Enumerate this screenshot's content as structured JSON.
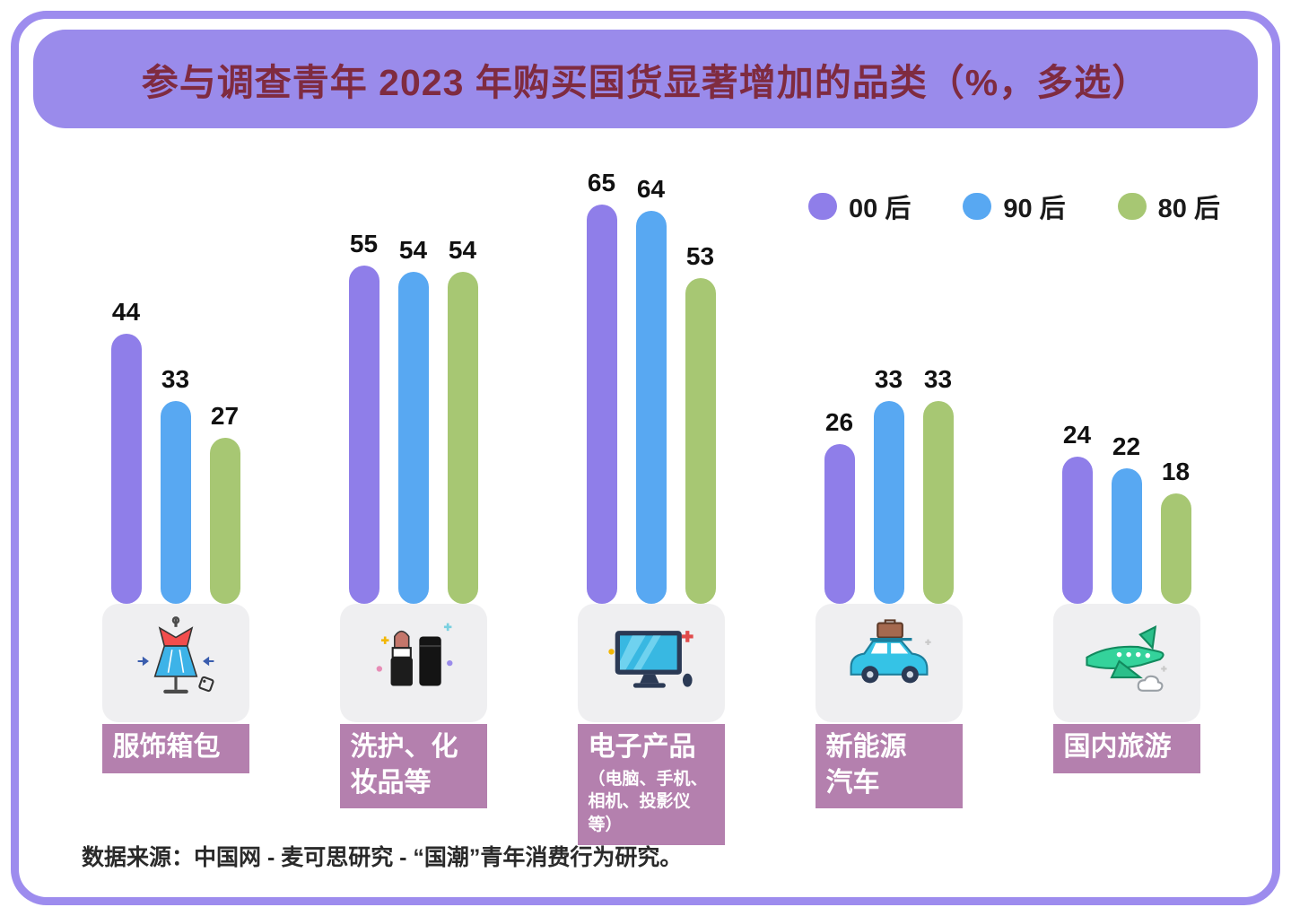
{
  "title": "参与调查青年 2023 年购买国货显著增加的品类（%，多选）",
  "source": "数据来源：中国网 - 麦可思研究 - “国潮”青年消费行为研究。",
  "legend": [
    {
      "label": "00 后",
      "color": "#8f7ee9"
    },
    {
      "label": "90 后",
      "color": "#58a8f2"
    },
    {
      "label": "80 后",
      "color": "#a7c773"
    }
  ],
  "chart_data": {
    "type": "bar",
    "unit": "%",
    "categories": [
      "服饰箱包",
      "洗护、化妆品等",
      "电子产品（电脑、手机、相机、投影仪等）",
      "新能源汽车",
      "国内旅游"
    ],
    "series": [
      {
        "name": "00 后",
        "color": "#8f7ee9",
        "values": [
          44,
          55,
          65,
          26,
          24
        ]
      },
      {
        "name": "90 后",
        "color": "#58a8f2",
        "values": [
          33,
          54,
          64,
          33,
          22
        ]
      },
      {
        "name": "80 后",
        "color": "#a7c773",
        "values": [
          27,
          54,
          53,
          33,
          18
        ]
      }
    ],
    "ylim": [
      0,
      70
    ],
    "grid": false,
    "legend_position": "top-right",
    "title": "参与调查青年 2023 年购买国货显著增加的品类（%，多选）"
  },
  "groups": [
    {
      "label": "服饰箱包",
      "icon": "dress-icon"
    },
    {
      "label": "洗护、化\n妆品等",
      "icon": "lipstick-icon"
    },
    {
      "label": "电子产品",
      "sublabel": "（电脑、手机、\n相机、投影仪\n等）",
      "icon": "monitor-icon"
    },
    {
      "label": "新能源\n汽车",
      "icon": "car-icon"
    },
    {
      "label": "国内旅游",
      "icon": "plane-icon"
    }
  ]
}
